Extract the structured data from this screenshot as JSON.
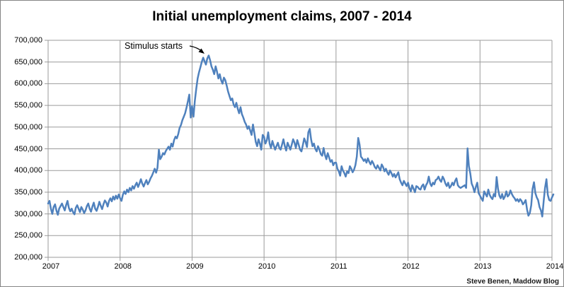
{
  "chart_title": "Initial unemployment claims, 2007 - 2014",
  "annotation": {
    "text": "Stimulus starts"
  },
  "source_credit": "Steve Benen, Maddow Blog",
  "chart_data": {
    "type": "line",
    "title": "Initial unemployment claims, 2007 - 2014",
    "xlabel": "",
    "ylabel": "",
    "x_frequency": "weekly",
    "x_range": "Jan 2007 - Jan 2014",
    "xticks": [
      "2007",
      "2008",
      "2009",
      "2010",
      "2011",
      "2012",
      "2013",
      "2014"
    ],
    "yticks": [
      "700,000",
      "650,000",
      "600,000",
      "550,000",
      "500,000",
      "450,000",
      "400,000",
      "350,000",
      "300,000",
      "250,000",
      "200,000"
    ],
    "ylim": [
      200000,
      700000
    ],
    "grid": true,
    "legend": "none",
    "line_color": "#4F81BD",
    "grid_color": "#9b9b9b",
    "value_scale": 1000,
    "series": [
      {
        "name": "Initial unemployment claims (weekly, thousands)",
        "values": [
          324,
          330,
          312,
          300,
          316,
          322,
          308,
          298,
          312,
          318,
          324,
          316,
          308,
          320,
          330,
          314,
          306,
          312,
          304,
          299,
          314,
          320,
          312,
          304,
          316,
          310,
          302,
          308,
          318,
          324,
          312,
          305,
          317,
          326,
          312,
          307,
          316,
          328,
          319,
          311,
          322,
          331,
          326,
          317,
          330,
          336,
          329,
          340,
          333,
          342,
          335,
          345,
          336,
          330,
          344,
          352,
          346,
          356,
          350,
          360,
          354,
          364,
          358,
          366,
          372,
          362,
          370,
          380,
          370,
          363,
          371,
          378,
          368,
          374,
          382,
          388,
          396,
          404,
          395,
          406,
          448,
          426,
          432,
          440,
          437,
          445,
          450,
          455,
          448,
          462,
          455,
          470,
          478,
          474,
          484,
          498,
          505,
          516,
          524,
          532,
          545,
          560,
          575,
          522,
          548,
          524,
          560,
          588,
          612,
          626,
          638,
          650,
          660,
          652,
          644,
          658,
          665,
          654,
          640,
          632,
          622,
          640,
          628,
          612,
          622,
          608,
          600,
          614,
          608,
          596,
          582,
          572,
          562,
          566,
          552,
          546,
          556,
          542,
          532,
          546,
          530,
          522,
          512,
          506,
          496,
          502,
          492,
          482,
          506,
          486,
          466,
          456,
          472,
          462,
          448,
          482,
          478,
          462,
          470,
          488,
          462,
          452,
          468,
          458,
          448,
          456,
          464,
          452,
          448,
          460,
          472,
          456,
          446,
          464,
          456,
          448,
          460,
          472,
          464,
          452,
          470,
          460,
          448,
          444,
          458,
          474,
          466,
          454,
          488,
          496,
          472,
          456,
          462,
          450,
          444,
          456,
          448,
          438,
          434,
          452,
          436,
          426,
          440,
          430,
          420,
          424,
          412,
          418,
          418,
          404,
          398,
          388,
          410,
          400,
          394,
          386,
          398,
          394,
          410,
          404,
          396,
          402,
          412,
          432,
          475,
          460,
          432,
          428,
          422,
          426,
          418,
          428,
          420,
          414,
          422,
          416,
          408,
          404,
          412,
          406,
          400,
          414,
          408,
          398,
          404,
          396,
          390,
          400,
          394,
          386,
          392,
          384,
          390,
          396,
          380,
          372,
          366,
          376,
          370,
          364,
          372,
          360,
          352,
          366,
          358,
          350,
          364,
          362,
          358,
          356,
          364,
          368,
          356,
          366,
          372,
          386,
          370,
          364,
          372,
          368,
          378,
          380,
          386,
          378,
          374,
          386,
          380,
          370,
          364,
          372,
          360,
          364,
          372,
          366,
          376,
          382,
          366,
          362,
          360,
          362,
          364,
          366,
          360,
          451,
          410,
          393,
          370,
          362,
          350,
          362,
          372,
          348,
          342,
          336,
          330,
          352,
          346,
          340,
          356,
          344,
          338,
          334,
          346,
          340,
          385,
          358,
          342,
          336,
          346,
          334,
          340,
          352,
          340,
          344,
          354,
          346,
          340,
          336,
          330,
          334,
          328,
          334,
          330,
          322,
          326,
          332,
          310,
          296,
          302,
          320,
          358,
          373,
          348,
          338,
          332,
          316,
          308,
          294,
          330,
          360,
          380,
          344,
          332,
          330,
          338,
          345
        ]
      }
    ],
    "annotations": [
      {
        "text": "Stimulus starts",
        "points_to": "peak of ~665,000 in early 2009"
      }
    ]
  }
}
